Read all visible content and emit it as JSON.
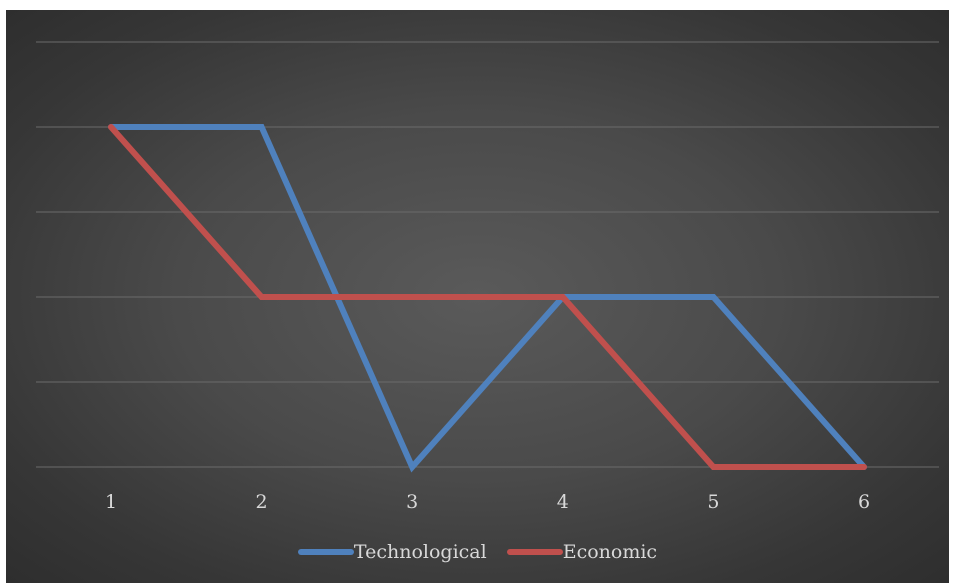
{
  "chart_data": {
    "type": "line",
    "categories": [
      "1",
      "2",
      "3",
      "4",
      "5",
      "6"
    ],
    "series": [
      {
        "name": "Technological",
        "values": [
          4,
          4,
          0,
          2,
          2,
          0
        ],
        "color": "#4f81bd"
      },
      {
        "name": "Economic",
        "values": [
          4,
          2,
          2,
          2,
          0,
          0
        ],
        "color": "#c0504d"
      }
    ],
    "ylim": [
      0,
      5
    ],
    "y_gridlines": [
      0,
      1,
      2,
      3,
      4,
      5
    ],
    "grid": true,
    "legend_position": "bottom",
    "background_color": "#4a4a4a",
    "gridline_color": "#6b6b6b",
    "text_color": "#d9d9d9"
  }
}
